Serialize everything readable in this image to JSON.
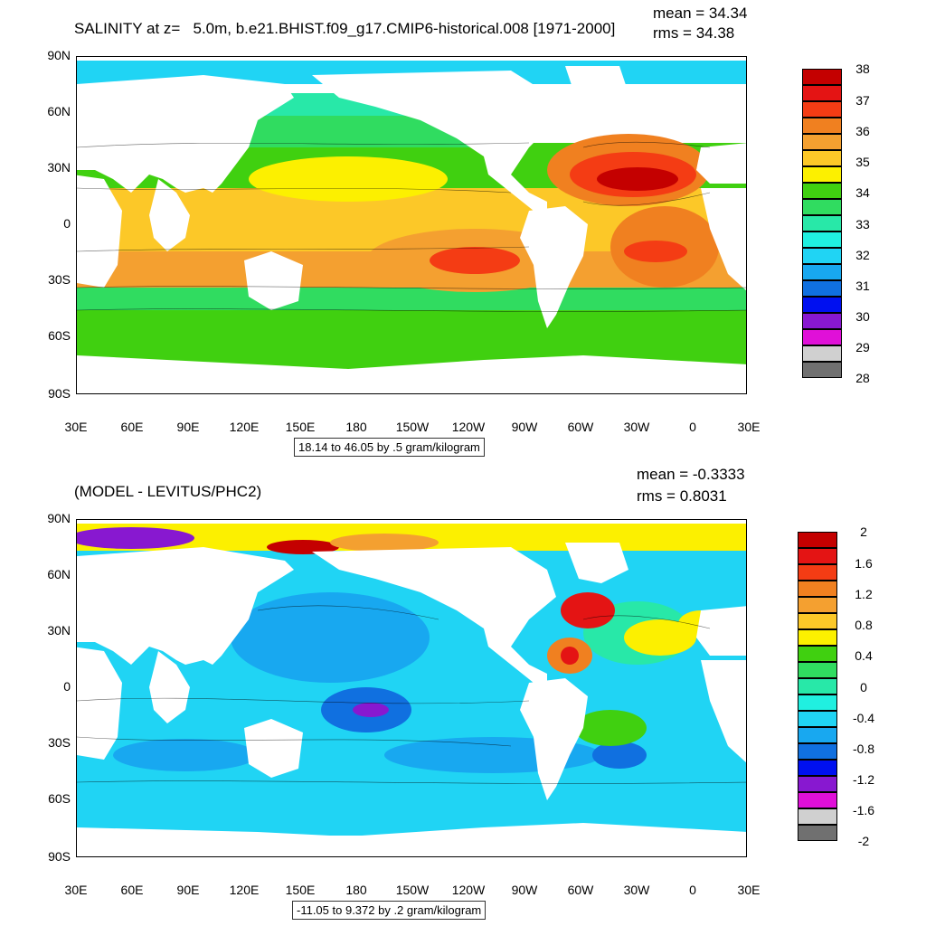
{
  "panels": [
    {
      "title": "SALINITY at z=   5.0m, b.e21.BHIST.f09_g17.CMIP6-historical.008 [1971-2000]",
      "mean": "mean = 34.34",
      "rms": "rms = 34.38",
      "range": "18.14 to 46.05 by .5 gram/kilogram",
      "lat_labels": [
        "90N",
        "60N",
        "30N",
        "0",
        "30S",
        "60S",
        "90S"
      ],
      "lon_labels": [
        "30E",
        "60E",
        "90E",
        "120E",
        "150E",
        "180",
        "150W",
        "120W",
        "90W",
        "60W",
        "30W",
        "0",
        "30E"
      ],
      "colorbar_labels": [
        "38",
        "37",
        "36",
        "35",
        "34",
        "33",
        "32",
        "31",
        "30",
        "29",
        "28"
      ],
      "colorbar_colors": [
        "#c40000",
        "#e41414",
        "#f43c14",
        "#f08020",
        "#f4a030",
        "#fcc828",
        "#fcf000",
        "#40d010",
        "#30dc60",
        "#28e8a8",
        "#20f0e0",
        "#20d4f4",
        "#18a8f0",
        "#1070e0",
        "#0010f0",
        "#8818d0",
        "#e010d8",
        "#d0d0d0",
        "#707070"
      ]
    },
    {
      "title": "(MODEL - LEVITUS/PHC2)",
      "mean": "mean = -0.3333",
      "rms": "rms = 0.8031",
      "range": "-11.05 to 9.372 by .2 gram/kilogram",
      "lat_labels": [
        "90N",
        "60N",
        "30N",
        "0",
        "30S",
        "60S",
        "90S"
      ],
      "lon_labels": [
        "30E",
        "60E",
        "90E",
        "120E",
        "150E",
        "180",
        "150W",
        "120W",
        "90W",
        "60W",
        "30W",
        "0",
        "30E"
      ],
      "colorbar_labels": [
        "2",
        "1.6",
        "1.2",
        "0.8",
        "0.4",
        "0",
        "-0.4",
        "-0.8",
        "-1.2",
        "-1.6",
        "-2"
      ],
      "colorbar_colors": [
        "#c40000",
        "#e41414",
        "#f43c14",
        "#f08020",
        "#f4a030",
        "#fcc828",
        "#fcf000",
        "#40d010",
        "#30dc60",
        "#28e8a8",
        "#20f0e0",
        "#20d4f4",
        "#18a8f0",
        "#1070e0",
        "#0010f0",
        "#8818d0",
        "#e010d8",
        "#d0d0d0",
        "#707070"
      ]
    }
  ]
}
